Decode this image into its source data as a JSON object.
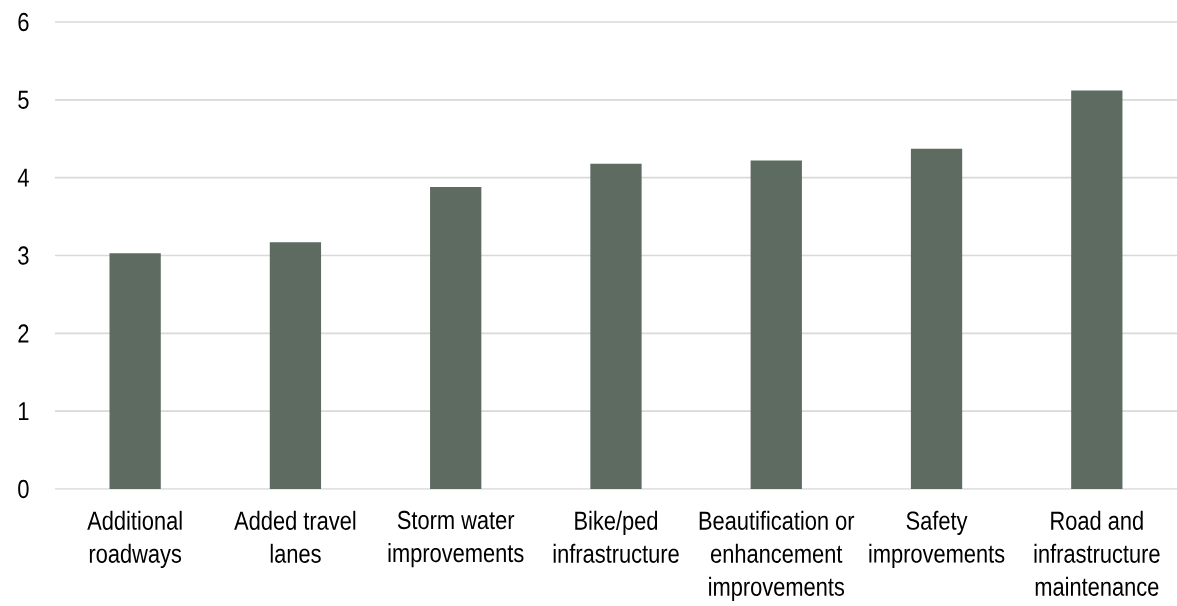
{
  "chart_data": {
    "type": "bar",
    "categories": [
      "Additional roadways",
      "Added travel lanes",
      "Storm water improvements",
      "Bike/ped infrastructure",
      "Beautification or enhancement improvements",
      "Safety improvements",
      "Road and infrastructure maintenance"
    ],
    "values": [
      3.03,
      3.17,
      3.88,
      4.18,
      4.22,
      4.37,
      5.12
    ],
    "color": "#5d6b60",
    "ylim": [
      0,
      6
    ],
    "yticks": [
      0,
      1,
      2,
      3,
      4,
      5,
      6
    ],
    "grid": "y"
  }
}
